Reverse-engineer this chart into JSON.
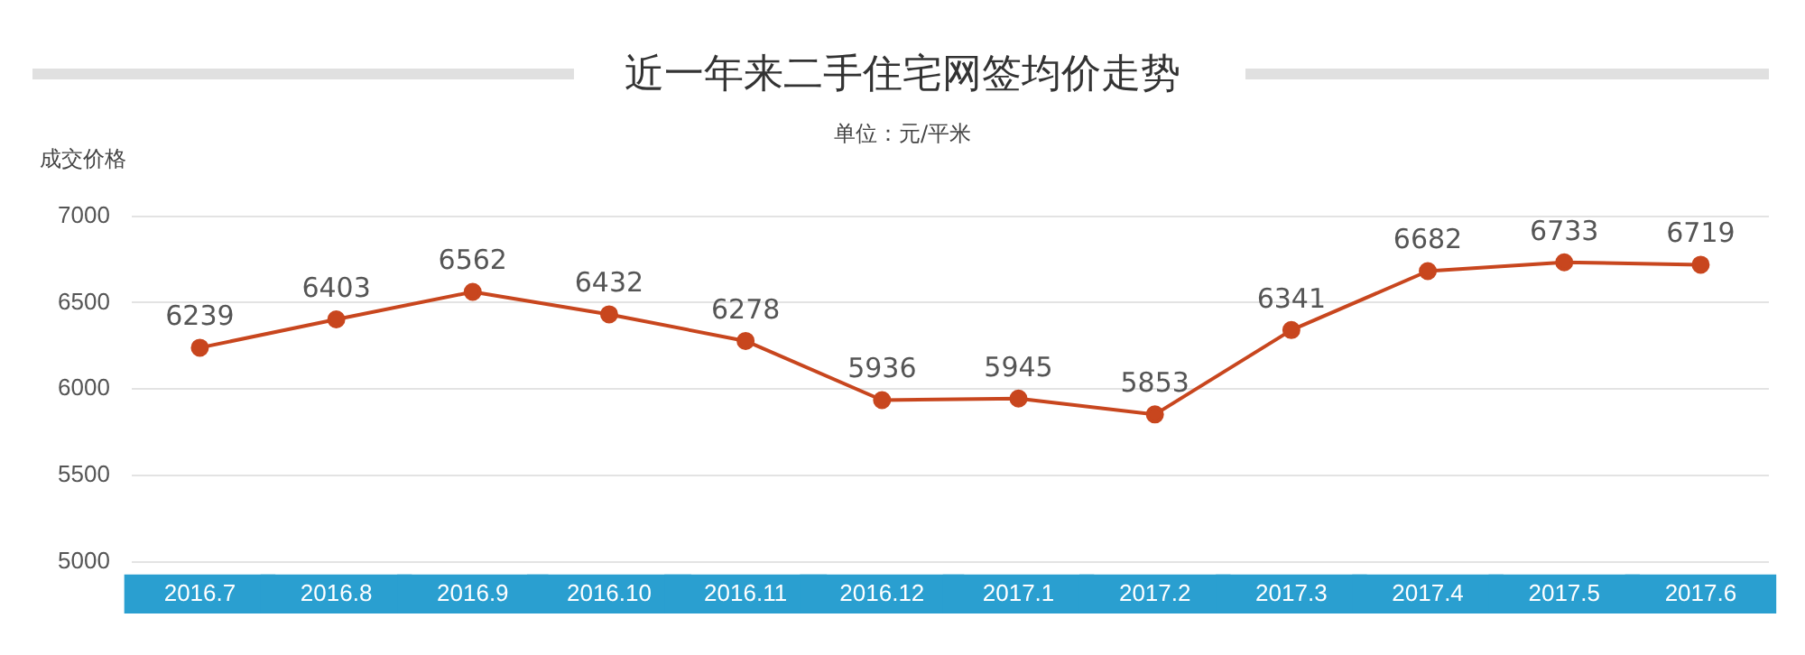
{
  "chart_data": {
    "type": "line",
    "title": "近一年来二手住宅网签均价走势",
    "subtitle": "单位：元/平米",
    "ylabel": "成交价格",
    "categories": [
      "2016.7",
      "2016.8",
      "2016.9",
      "2016.10",
      "2016.11",
      "2016.12",
      "2017.1",
      "2017.2",
      "2017.3",
      "2017.4",
      "2017.5",
      "2017.6"
    ],
    "series": [
      {
        "color": "#c8461e",
        "values": [
          6239,
          6403,
          6562,
          6432,
          6278,
          5936,
          5945,
          5853,
          6341,
          6682,
          6733,
          6719
        ]
      }
    ],
    "ylim": [
      5000,
      7000
    ],
    "yticks": [
      5000,
      5500,
      6000,
      6500,
      7000
    ],
    "grid": "y",
    "legend": false,
    "marker": "circle",
    "line_style": "solid",
    "data_labels": true
  }
}
